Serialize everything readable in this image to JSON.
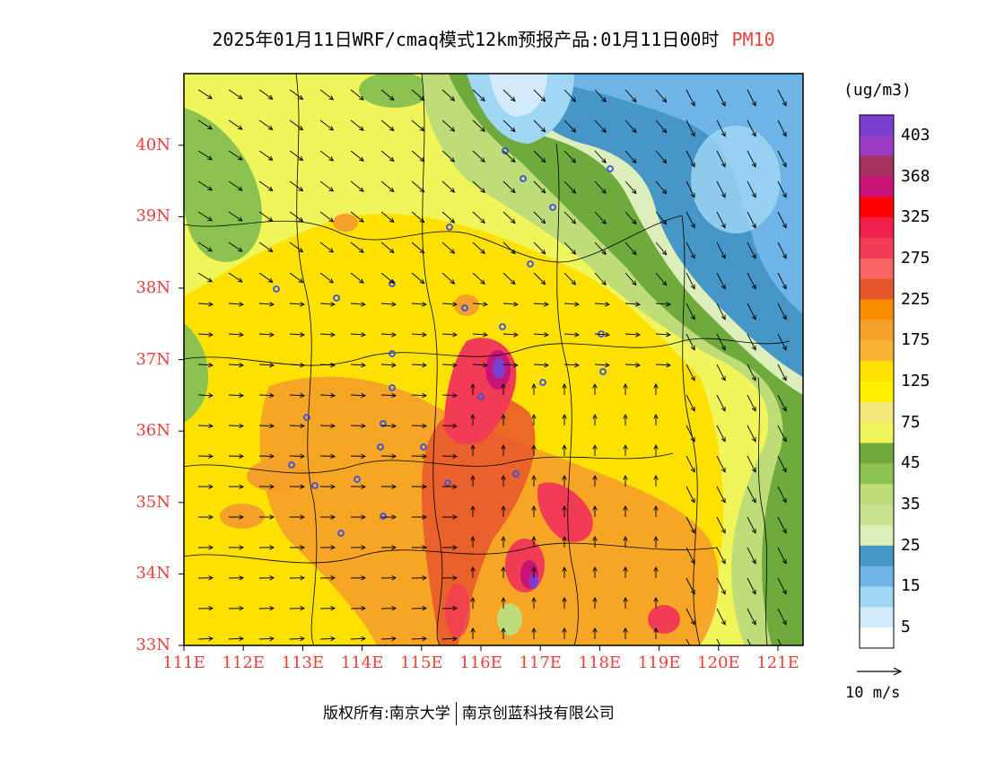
{
  "title": {
    "main": "2025年01月11日WRF/cmaq模式12km预报产品:01月11日00时",
    "pollutant": "PM10",
    "pollutant_color": "#e8413c"
  },
  "footer": {
    "copyright_left": "版权所有:南京大学",
    "copyright_right": "南京创蓝科技有限公司"
  },
  "axes": {
    "label_color": "#e8413c",
    "lat_labels": [
      "40N",
      "39N",
      "38N",
      "37N",
      "36N",
      "35N",
      "34N",
      "33N"
    ],
    "lon_labels": [
      "111E",
      "112E",
      "113E",
      "114E",
      "115E",
      "116E",
      "117E",
      "118E",
      "119E",
      "120E",
      "121E"
    ],
    "lat_range": [
      33,
      41
    ],
    "lon_range": [
      111,
      121.4
    ]
  },
  "legend": {
    "unit": "(ug/m3)",
    "levels": [
      {
        "label": "403",
        "color": "#7b3fd0"
      },
      {
        "label": "",
        "color": "#9b3cc4"
      },
      {
        "label": "368",
        "color": "#a8325e"
      },
      {
        "label": "",
        "color": "#c81478"
      },
      {
        "label": "325",
        "color": "#ff0000"
      },
      {
        "label": "",
        "color": "#f0204b"
      },
      {
        "label": "275",
        "color": "#f23c55"
      },
      {
        "label": "",
        "color": "#fa6464"
      },
      {
        "label": "225",
        "color": "#e8552d"
      },
      {
        "label": "",
        "color": "#fa8c00"
      },
      {
        "label": "175",
        "color": "#f5a028"
      },
      {
        "label": "",
        "color": "#fab432"
      },
      {
        "label": "125",
        "color": "#ffe100"
      },
      {
        "label": "",
        "color": "#fff000"
      },
      {
        "label": "75",
        "color": "#f5e678"
      },
      {
        "label": "",
        "color": "#f0f55a"
      },
      {
        "label": "45",
        "color": "#6eaa3c"
      },
      {
        "label": "",
        "color": "#8cc350"
      },
      {
        "label": "35",
        "color": "#bedc78"
      },
      {
        "label": "",
        "color": "#c8e18c"
      },
      {
        "label": "25",
        "color": "#dceeb9"
      },
      {
        "label": "",
        "color": "#4696c8"
      },
      {
        "label": "15",
        "color": "#6eb4e6"
      },
      {
        "label": "",
        "color": "#a0d7f5"
      },
      {
        "label": "5",
        "color": "#d2ebfa"
      },
      {
        "label": "",
        "color": "#ffffff"
      }
    ]
  },
  "vector_reference": {
    "label": "10 m/s"
  }
}
